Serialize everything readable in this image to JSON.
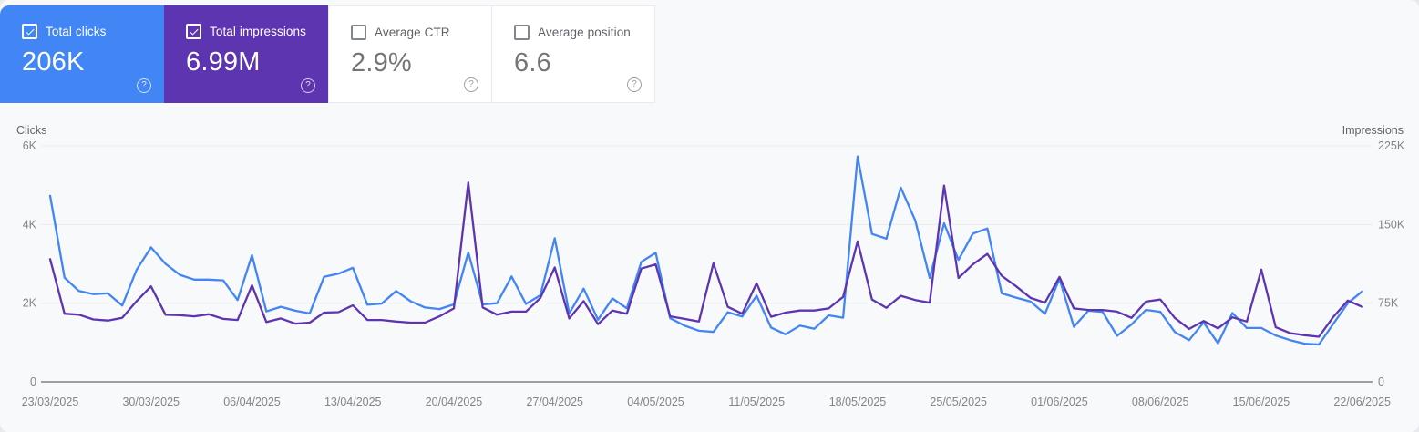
{
  "cards": [
    {
      "label": "Total clicks",
      "value": "206K",
      "checked": true,
      "color": "#4285f4"
    },
    {
      "label": "Total impressions",
      "value": "6.99M",
      "checked": true,
      "color": "#5e35b1"
    },
    {
      "label": "Average CTR",
      "value": "2.9%",
      "checked": false,
      "color": "#ffffff"
    },
    {
      "label": "Average position",
      "value": "6.6",
      "checked": false,
      "color": "#ffffff"
    }
  ],
  "icons": {
    "help_glyph": "?"
  },
  "chart": {
    "left_axis_title": "Clicks",
    "right_axis_title": "Impressions",
    "left_ticks": [
      {
        "label": "0",
        "value": 0
      },
      {
        "label": "2K",
        "value": 2000
      },
      {
        "label": "4K",
        "value": 4000
      },
      {
        "label": "6K",
        "value": 6000
      }
    ],
    "right_ticks": [
      {
        "label": "0",
        "value": 0
      },
      {
        "label": "75K",
        "value": 75000
      },
      {
        "label": "150K",
        "value": 150000
      },
      {
        "label": "225K",
        "value": 225000
      }
    ]
  },
  "chart_data": {
    "type": "line",
    "granularity": "daily",
    "start_date": "23/03/2025",
    "end_date": "22/06/2025",
    "x_tick_labels": [
      "23/03/2025",
      "30/03/2025",
      "06/04/2025",
      "13/04/2025",
      "20/04/2025",
      "27/04/2025",
      "04/05/2025",
      "11/05/2025",
      "18/05/2025",
      "25/05/2025",
      "01/06/2025",
      "08/06/2025",
      "15/06/2025",
      "22/06/2025"
    ],
    "left_ylim": [
      0,
      6000
    ],
    "right_ylim": [
      0,
      225000
    ],
    "grid": true,
    "legend": "none",
    "series": [
      {
        "name": "Total clicks",
        "axis": "left",
        "color": "#4285f4",
        "ymax": 6000,
        "values": [
          4730,
          2650,
          2310,
          2230,
          2250,
          1940,
          2850,
          3420,
          3000,
          2720,
          2600,
          2600,
          2580,
          2080,
          3220,
          1790,
          1910,
          1810,
          1740,
          2670,
          2750,
          2900,
          1960,
          1990,
          2310,
          2050,
          1890,
          1850,
          1970,
          3290,
          1970,
          2000,
          2680,
          1980,
          2200,
          3650,
          1740,
          2370,
          1580,
          2120,
          1870,
          3050,
          3280,
          1620,
          1430,
          1300,
          1270,
          1770,
          1660,
          2190,
          1380,
          1210,
          1430,
          1350,
          1690,
          1630,
          5730,
          3760,
          3640,
          4940,
          4100,
          2640,
          4030,
          3100,
          3770,
          3900,
          2250,
          2140,
          2040,
          1730,
          2620,
          1400,
          1810,
          1780,
          1170,
          1460,
          1830,
          1780,
          1270,
          1060,
          1510,
          980,
          1750,
          1370,
          1370,
          1180,
          1060,
          970,
          950,
          1480,
          2000,
          2300
        ]
      },
      {
        "name": "Total impressions",
        "axis": "right",
        "color": "#5e35b1",
        "ymax": 225000,
        "values": [
          117000,
          65000,
          64000,
          59500,
          58500,
          61000,
          77000,
          91000,
          64000,
          63500,
          62500,
          64500,
          60000,
          59000,
          92000,
          57000,
          60500,
          55500,
          56500,
          66000,
          66500,
          73000,
          59000,
          59000,
          57500,
          56500,
          56500,
          62500,
          70000,
          190000,
          71000,
          64000,
          67000,
          67000,
          80000,
          109000,
          60500,
          77000,
          55000,
          68000,
          65000,
          108000,
          112000,
          62500,
          60000,
          57500,
          113000,
          71500,
          65000,
          94000,
          62000,
          66000,
          68000,
          68000,
          70000,
          81000,
          134000,
          78500,
          70500,
          82000,
          78000,
          75500,
          187000,
          99000,
          112000,
          122000,
          101000,
          91000,
          80000,
          75500,
          100000,
          70000,
          68500,
          68500,
          67000,
          61000,
          76500,
          78500,
          61000,
          50500,
          58000,
          51000,
          61500,
          57500,
          107000,
          52000,
          46500,
          44500,
          43000,
          62000,
          77500,
          71500
        ]
      }
    ]
  }
}
